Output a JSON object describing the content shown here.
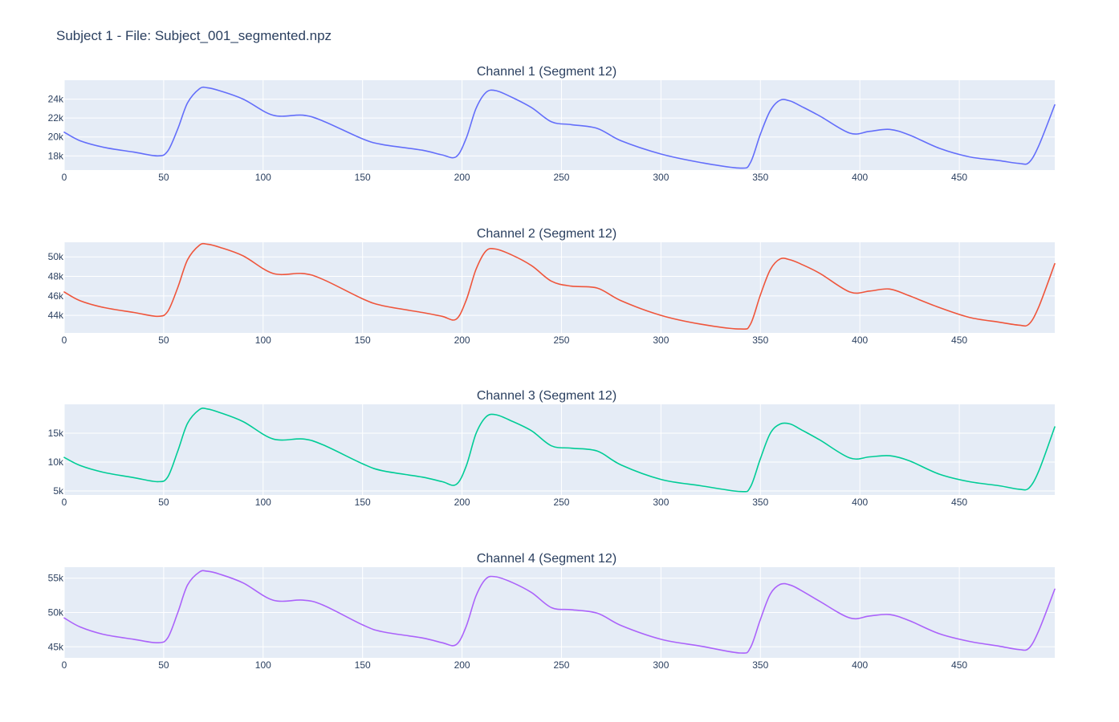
{
  "figure": {
    "title": "Subject 1 - File: Subject_001_segmented.npz"
  },
  "chart_data": [
    {
      "type": "line",
      "title": "Channel 1 (Segment 12)",
      "color": "#636efa",
      "xlim": [
        0,
        498
      ],
      "ylim": [
        16500,
        26000
      ],
      "xticks": [
        0,
        50,
        100,
        150,
        200,
        250,
        300,
        350,
        400,
        450
      ],
      "yticks": [
        18000,
        20000,
        22000,
        24000
      ],
      "ytick_labels": [
        "18k",
        "20k",
        "22k",
        "24k"
      ],
      "x": [
        0,
        8,
        20,
        35,
        47,
        52,
        57,
        62,
        68,
        72,
        78,
        90,
        105,
        120,
        130,
        150,
        160,
        180,
        190,
        197,
        202,
        207,
        212,
        217,
        225,
        235,
        245,
        255,
        268,
        280,
        300,
        320,
        340,
        345,
        350,
        355,
        360,
        365,
        370,
        380,
        395,
        405,
        415,
        425,
        440,
        455,
        470,
        480,
        485,
        490,
        498
      ],
      "values": [
        20500,
        19600,
        18900,
        18400,
        18000,
        18500,
        20800,
        23600,
        25100,
        25200,
        24900,
        24000,
        22300,
        22300,
        21700,
        19800,
        19200,
        18600,
        18100,
        17900,
        19800,
        23000,
        24700,
        24900,
        24200,
        23100,
        21600,
        21300,
        20900,
        19600,
        18200,
        17300,
        16700,
        17300,
        20300,
        22800,
        23900,
        23800,
        23300,
        22200,
        20400,
        20600,
        20800,
        20200,
        18800,
        17900,
        17500,
        17200,
        17300,
        19100,
        23400
      ]
    },
    {
      "type": "line",
      "title": "Channel 2 (Segment 12)",
      "color": "#ef553b",
      "xlim": [
        0,
        498
      ],
      "ylim": [
        42200,
        51500
      ],
      "xticks": [
        0,
        50,
        100,
        150,
        200,
        250,
        300,
        350,
        400,
        450
      ],
      "yticks": [
        44000,
        46000,
        48000,
        50000
      ],
      "ytick_labels": [
        "44k",
        "46k",
        "48k",
        "50k"
      ],
      "x": [
        0,
        8,
        20,
        35,
        47,
        52,
        57,
        62,
        68,
        72,
        78,
        90,
        105,
        120,
        130,
        150,
        160,
        180,
        190,
        197,
        202,
        207,
        212,
        217,
        225,
        235,
        245,
        255,
        268,
        280,
        300,
        320,
        340,
        345,
        350,
        355,
        360,
        365,
        370,
        380,
        395,
        405,
        415,
        425,
        440,
        455,
        470,
        480,
        485,
        490,
        498
      ],
      "values": [
        46400,
        45500,
        44800,
        44300,
        43900,
        44400,
        46800,
        49700,
        51200,
        51300,
        51000,
        50100,
        48300,
        48300,
        47700,
        45700,
        45000,
        44300,
        43900,
        43600,
        45500,
        48700,
        50600,
        50800,
        50200,
        49100,
        47500,
        47000,
        46800,
        45500,
        44000,
        43100,
        42600,
        43100,
        46100,
        48700,
        49800,
        49700,
        49300,
        48300,
        46400,
        46500,
        46700,
        46000,
        44800,
        43800,
        43300,
        43000,
        43100,
        44900,
        49300
      ]
    },
    {
      "type": "line",
      "title": "Channel 3 (Segment 12)",
      "color": "#00cc96",
      "xlim": [
        0,
        498
      ],
      "ylim": [
        4300,
        20000
      ],
      "xticks": [
        0,
        50,
        100,
        150,
        200,
        250,
        300,
        350,
        400,
        450
      ],
      "yticks": [
        5000,
        10000,
        15000
      ],
      "ytick_labels": [
        "5k",
        "10k",
        "15k"
      ],
      "x": [
        0,
        8,
        20,
        35,
        47,
        52,
        57,
        62,
        68,
        72,
        78,
        90,
        105,
        120,
        130,
        150,
        160,
        180,
        190,
        197,
        202,
        207,
        212,
        217,
        225,
        235,
        245,
        255,
        268,
        280,
        300,
        320,
        340,
        345,
        350,
        355,
        360,
        365,
        370,
        380,
        395,
        405,
        415,
        425,
        440,
        455,
        470,
        480,
        485,
        490,
        498
      ],
      "values": [
        10800,
        9400,
        8200,
        7300,
        6600,
        7400,
        11800,
        16700,
        19100,
        19200,
        18600,
        17000,
        14000,
        14000,
        13000,
        9700,
        8500,
        7400,
        6600,
        6100,
        9200,
        14900,
        17800,
        18200,
        17100,
        15400,
        12800,
        12400,
        11900,
        9500,
        7000,
        5900,
        4900,
        5700,
        10600,
        15000,
        16600,
        16600,
        15700,
        13800,
        10700,
        10900,
        11100,
        10200,
        7900,
        6600,
        5900,
        5300,
        5500,
        8500,
        16100
      ]
    },
    {
      "type": "line",
      "title": "Channel 4 (Segment 12)",
      "color": "#ab63fa",
      "xlim": [
        0,
        498
      ],
      "ylim": [
        43400,
        56600
      ],
      "xticks": [
        0,
        50,
        100,
        150,
        200,
        250,
        300,
        350,
        400,
        450
      ],
      "yticks": [
        45000,
        50000,
        55000
      ],
      "ytick_labels": [
        "45k",
        "50k",
        "55k"
      ],
      "x": [
        0,
        8,
        20,
        35,
        47,
        52,
        57,
        62,
        68,
        72,
        78,
        90,
        105,
        120,
        130,
        150,
        160,
        180,
        190,
        197,
        202,
        207,
        212,
        217,
        225,
        235,
        245,
        255,
        268,
        280,
        300,
        320,
        340,
        345,
        350,
        355,
        360,
        365,
        370,
        380,
        395,
        405,
        415,
        425,
        440,
        455,
        470,
        480,
        485,
        490,
        498
      ],
      "values": [
        49200,
        47900,
        46800,
        46100,
        45600,
        46300,
        49900,
        54000,
        55900,
        56000,
        55600,
        54300,
        51800,
        51800,
        51100,
        48200,
        47200,
        46300,
        45600,
        45300,
        47900,
        52400,
        54900,
        55200,
        54400,
        52900,
        50700,
        50400,
        49900,
        48100,
        46100,
        45100,
        44100,
        44900,
        49000,
        52700,
        54100,
        54000,
        53300,
        51600,
        49200,
        49500,
        49700,
        48800,
        46900,
        45800,
        45100,
        44600,
        44800,
        47400,
        53400
      ]
    }
  ]
}
